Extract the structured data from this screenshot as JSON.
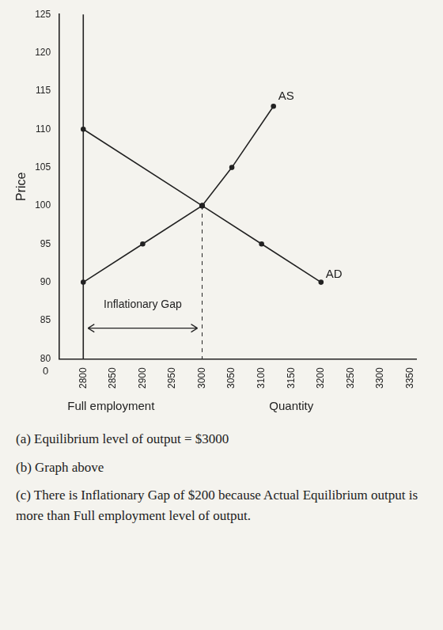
{
  "chart_data": {
    "type": "line",
    "x_label": "Quantity",
    "y_label": "Price",
    "xlim": [
      2760,
      3360
    ],
    "ylim": [
      80,
      125
    ],
    "xticks": [
      2800,
      2850,
      2900,
      2950,
      3000,
      3050,
      3100,
      3150,
      3200,
      3250,
      3300,
      3350
    ],
    "yticks": [
      80,
      85,
      90,
      95,
      100,
      105,
      110,
      115,
      120,
      125
    ],
    "grid": false,
    "series": [
      {
        "name": "AS",
        "color": "#222222",
        "x": [
          2800,
          2900,
          3000,
          3050,
          3120
        ],
        "values": [
          90,
          95,
          100,
          105,
          113
        ]
      },
      {
        "name": "AD",
        "color": "#222222",
        "x": [
          2800,
          3000,
          3100,
          3200
        ],
        "values": [
          110,
          100,
          95,
          90
        ]
      }
    ],
    "full_employment": {
      "x": 2800,
      "label": "Full employment"
    },
    "equilibrium": {
      "x": 3000,
      "y": 100
    },
    "gap_arrow": {
      "from": 2800,
      "to": 3000,
      "y": 84
    },
    "annotations": [
      {
        "text": "Inflationary Gap",
        "x": 2900,
        "y": 87
      }
    ],
    "origin_label": "0",
    "notes": [
      "(a) Equilibrium level of output = $3000",
      "(b) Graph above",
      "(c) There is Inflationary Gap of $200 because Actual Equilibrium output is more than Full employment level of output."
    ]
  }
}
